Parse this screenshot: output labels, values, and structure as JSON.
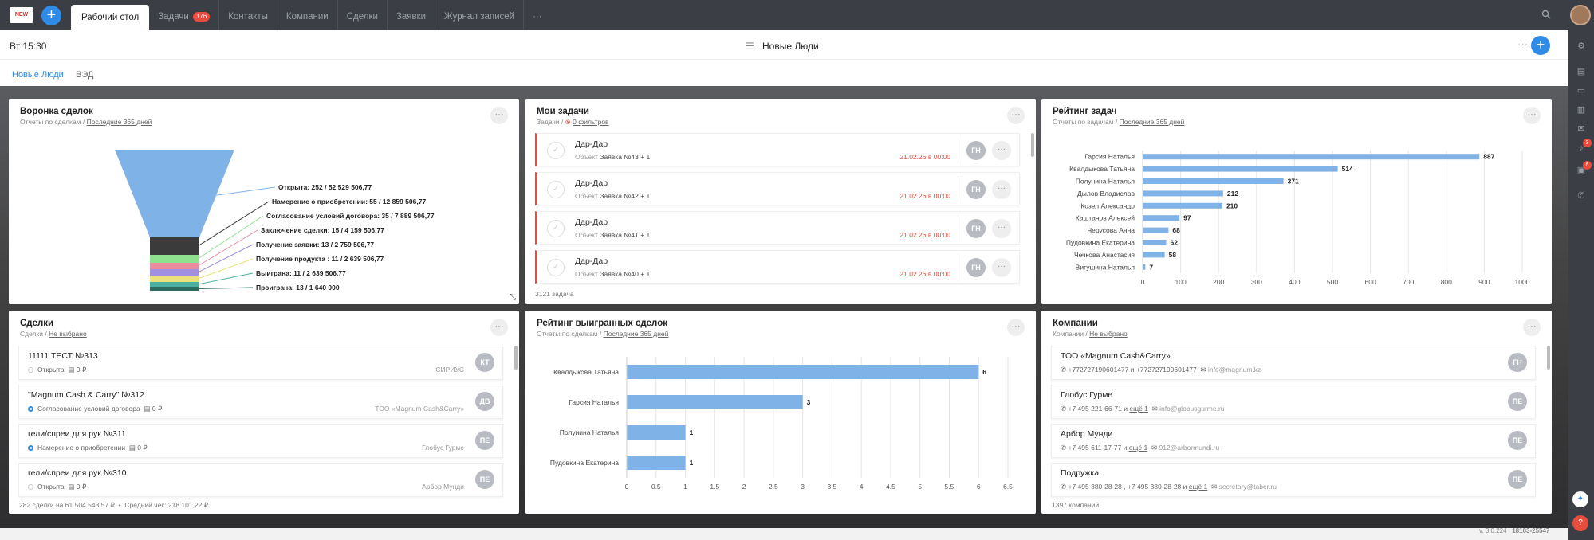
{
  "topbar": {
    "logo_text": "NEW",
    "add_label": "+",
    "tabs": [
      {
        "label": "Рабочий стол",
        "active": true
      },
      {
        "label": "Задачи",
        "badge": "176"
      },
      {
        "label": "Контакты"
      },
      {
        "label": "Компании"
      },
      {
        "label": "Сделки"
      },
      {
        "label": "Заявки"
      },
      {
        "label": "Журнал записей"
      },
      {
        "label": "···"
      }
    ]
  },
  "header": {
    "time": "Вт 15:30",
    "title": "Новые Люди",
    "dots": "···",
    "add_label": "+"
  },
  "subnav": {
    "tabs": [
      "Новые Люди",
      "ВЭД"
    ]
  },
  "sidebar_badges": [
    "3",
    "6"
  ],
  "funnel": {
    "title": "Воронка сделок",
    "subtitle_prefix": "Отчеты по сделкам /",
    "subtitle_link": "Последние 365 дней",
    "colors": [
      "#7fb3e8",
      "#3b3b3b",
      "#8fe08f",
      "#e98ca0",
      "#a18fe0",
      "#e9e27a",
      "#4ab0a0",
      "#2e6b5e"
    ],
    "labels": [
      "Открыта: 252 / 52 529 506,77",
      "Намерение о приобретении: 55 / 12 859 506,77",
      "Согласование условий договора: 35 / 7 889 506,77",
      "Заключение сделки: 15 / 4 159 506,77",
      "Получение заявки: 13 / 2 759 506,77",
      "Получение продукта : 11 / 2 639 506,77",
      "Выиграна: 11 / 2 639 506,77",
      "Проиграна: 13 / 1 640 000"
    ]
  },
  "tasks": {
    "title": "Мои задачи",
    "subtitle_prefix": "Задачи /",
    "filter_label": "0 фильтров",
    "items": [
      {
        "name": "Дар-Дар",
        "obj_label": "Объект",
        "obj": "Заявка №43 + 1",
        "date": "21.02.26 в 00:00",
        "initials": "ГН"
      },
      {
        "name": "Дар-Дар",
        "obj_label": "Объект",
        "obj": "Заявка №42 + 1",
        "date": "21.02.26 в 00:00",
        "initials": "ГН"
      },
      {
        "name": "Дар-Дар",
        "obj_label": "Объект",
        "obj": "Заявка №41 + 1",
        "date": "21.02.26 в 00:00",
        "initials": "ГН"
      },
      {
        "name": "Дар-Дар",
        "obj_label": "Объект",
        "obj": "Заявка №40 + 1",
        "date": "21.02.26 в 00:00",
        "initials": "ГН"
      }
    ],
    "footer": "3121 задача"
  },
  "chart_data": [
    {
      "type": "bar",
      "orientation": "horizontal",
      "title": "Рейтинг задач",
      "subtitle_prefix": "Отчеты по задачам /",
      "subtitle_link": "Последние 365 дней",
      "categories": [
        "Гарсия Наталья",
        "Квалдыкова Татьяна",
        "Полунина Наталья",
        "Дылов Владислав",
        "Козел Александр",
        "Каштанов Алексей",
        "Черусова Анна",
        "Пудовкина Екатерина",
        "Чечкова Анастасия",
        "Вигушина Наталья"
      ],
      "values": [
        887,
        514,
        371,
        212,
        210,
        97,
        68,
        62,
        58,
        7
      ],
      "xlim": [
        0,
        1000
      ],
      "xticks": [
        0,
        100,
        200,
        300,
        400,
        500,
        600,
        700,
        800,
        900,
        1000
      ],
      "bar_color": "#7fb3e8",
      "grid": true
    },
    {
      "type": "bar",
      "orientation": "horizontal",
      "title": "Рейтинг выигранных сделок",
      "subtitle_prefix": "Отчеты по сделкам /",
      "subtitle_link": "Последние 365 дней",
      "categories": [
        "Квалдыкова Татьяна",
        "Гарсия Наталья",
        "Полунина Наталья",
        "Пудовкина Екатерина"
      ],
      "values": [
        6,
        3,
        1,
        1
      ],
      "xlim": [
        0,
        6.5
      ],
      "xticks": [
        0,
        0.5,
        1,
        1.5,
        2,
        2.5,
        3,
        3.5,
        4,
        4.5,
        5,
        5.5,
        6,
        6.5
      ],
      "bar_color": "#7fb3e8",
      "grid": true
    }
  ],
  "deals": {
    "title": "Сделки",
    "subtitle_prefix": "Сделки /",
    "subtitle_link": "Не выбрано",
    "items": [
      {
        "name": "11111 ТЕСТ №313",
        "stage": "Открыта",
        "amount": "0 ₽",
        "company": "СИРИУС",
        "initials": "КТ",
        "dot": "grey"
      },
      {
        "name": "\"Magnum Cash & Carry\" №312",
        "stage": "Согласование условий договора",
        "amount": "0 ₽",
        "company": "ТОО «Magnum Cash&Carry»",
        "initials": "ДВ",
        "dot": "blue"
      },
      {
        "name": "гели/спреи для рук №311",
        "stage": "Намерение о приобретении",
        "amount": "0 ₽",
        "company": "Глобус Гурме",
        "initials": "ПЕ",
        "dot": "blue"
      },
      {
        "name": "гели/спреи для рук №310",
        "stage": "Открыта",
        "amount": "0 ₽",
        "company": "Арбор Мунди",
        "initials": "ПЕ",
        "dot": "grey"
      }
    ],
    "footer_total": "282 сделки на 61 504 543,57 ₽",
    "footer_avg": "Средний чек: 218 101,22 ₽"
  },
  "companies": {
    "title": "Компании",
    "subtitle_prefix": "Компании /",
    "subtitle_link": "Не выбрано",
    "items": [
      {
        "name": "ТОО «Magnum Cash&Carry»",
        "phones": "+772727190601477 и +772727190601477",
        "more": "",
        "email": "info@magnum.kz",
        "initials": "ГН"
      },
      {
        "name": "Глобус Гурме",
        "phones": "+7 495 221-66-71 и",
        "more": "ещё 1",
        "email": "info@globusgurme.ru",
        "initials": "ПЕ"
      },
      {
        "name": "Арбор Мунди",
        "phones": "+7 495 611-17-77 и",
        "more": "ещё 1",
        "email": "912@arbormundi.ru",
        "initials": "ПЕ"
      },
      {
        "name": "Подружка",
        "phones": "+7 495 380-28-28 , +7 495 380-28-28 и",
        "more": "ещё 1",
        "email": "secretary@taber.ru",
        "initials": "ПЕ"
      }
    ],
    "footer": "1397 компаний"
  },
  "bottom": {
    "version": "v. 3.0.224",
    "build": "18103-25547"
  }
}
